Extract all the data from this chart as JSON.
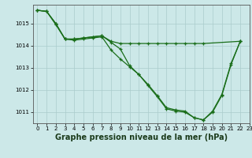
{
  "background_color": "#cce8e8",
  "grid_color": "#aacccc",
  "line_color": "#1a6e1a",
  "marker_color": "#1a6e1a",
  "xlabel": "Graphe pression niveau de la mer (hPa)",
  "xlabel_fontsize": 7,
  "tick_fontsize": 5,
  "xlim": [
    -0.5,
    23
  ],
  "ylim": [
    1010.5,
    1015.85
  ],
  "yticks": [
    1011,
    1012,
    1013,
    1014,
    1015
  ],
  "xticks": [
    0,
    1,
    2,
    3,
    4,
    5,
    6,
    7,
    8,
    9,
    10,
    11,
    12,
    13,
    14,
    15,
    16,
    17,
    18,
    19,
    20,
    21,
    22,
    23
  ],
  "line_flat_x": [
    0,
    1,
    2,
    3,
    4,
    5,
    6,
    7,
    8,
    9,
    10,
    11,
    12,
    13,
    14,
    15,
    16,
    17,
    18,
    22
  ],
  "line_flat_y": [
    1015.6,
    1015.55,
    1015.0,
    1014.3,
    1014.3,
    1014.35,
    1014.4,
    1014.45,
    1014.2,
    1014.1,
    1014.1,
    1014.1,
    1014.1,
    1014.1,
    1014.1,
    1014.1,
    1014.1,
    1014.1,
    1014.1,
    1014.2
  ],
  "line_steep_x": [
    0,
    1,
    2,
    3,
    4,
    5,
    6,
    7,
    8,
    9,
    10,
    11,
    12,
    13,
    14,
    15,
    16,
    17,
    18,
    19,
    20,
    21,
    22
  ],
  "line_steep_y": [
    1015.6,
    1015.55,
    1014.95,
    1014.3,
    1014.25,
    1014.3,
    1014.35,
    1014.4,
    1013.8,
    1013.4,
    1013.05,
    1012.7,
    1012.25,
    1011.75,
    1011.2,
    1011.1,
    1011.05,
    1010.75,
    1010.65,
    1011.0,
    1011.75,
    1013.15,
    1014.2
  ],
  "line_mid_x": [
    0,
    1,
    2,
    3,
    4,
    5,
    6,
    7,
    8,
    9,
    10,
    11,
    12,
    13,
    14,
    15,
    16,
    17,
    18,
    19,
    20,
    21,
    22
  ],
  "line_mid_y": [
    1015.6,
    1015.55,
    1015.0,
    1014.3,
    1014.3,
    1014.35,
    1014.4,
    1014.45,
    1014.15,
    1013.85,
    1013.1,
    1012.7,
    1012.2,
    1011.7,
    1011.15,
    1011.05,
    1011.0,
    1010.75,
    1010.65,
    1011.05,
    1011.8,
    1013.2,
    1014.2
  ]
}
